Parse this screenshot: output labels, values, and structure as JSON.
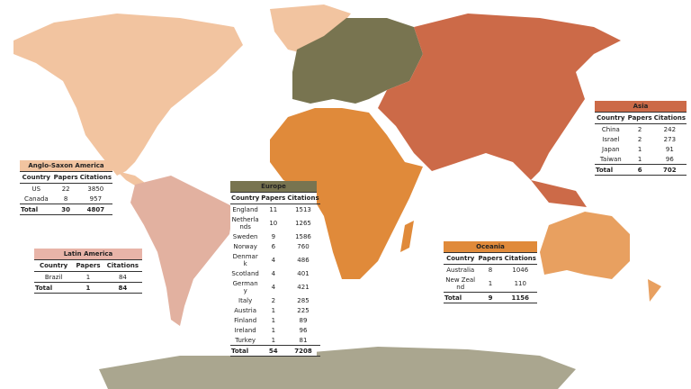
{
  "tables": [
    {
      "title": "Anglo-Saxon America",
      "columns": [
        "Country",
        "Papers",
        "Citations"
      ],
      "rows": [
        [
          "US",
          22,
          3850
        ],
        [
          "Canada",
          8,
          957
        ]
      ],
      "total": [
        "Total",
        30,
        4807
      ]
    },
    {
      "title": "Latin America",
      "columns": [
        "Country",
        "Papers",
        "Citations"
      ],
      "rows": [
        [
          "Brazil",
          1,
          84
        ]
      ],
      "total": [
        "Total",
        1,
        84
      ]
    },
    {
      "title": "Europe",
      "columns": [
        "Country",
        "Papers",
        "Citations"
      ],
      "rows": [
        [
          "England",
          11,
          1513
        ],
        [
          "Netherlands",
          10,
          1265
        ],
        [
          "Sweden",
          9,
          1586
        ],
        [
          "Norway",
          6,
          760
        ],
        [
          "Denmark",
          4,
          486
        ],
        [
          "Scotland",
          4,
          401
        ],
        [
          "Germany",
          4,
          421
        ],
        [
          "Italy",
          2,
          285
        ],
        [
          "Austria",
          1,
          225
        ],
        [
          "Finland",
          1,
          89
        ],
        [
          "Ireland",
          1,
          96
        ],
        [
          "Turkey",
          1,
          81
        ]
      ],
      "total": [
        "Total",
        54,
        7208
      ]
    },
    {
      "title": "Asia",
      "columns": [
        "Country",
        "Papers",
        "Citations"
      ],
      "rows": [
        [
          "China",
          2,
          242
        ],
        [
          "Israel",
          2,
          273
        ],
        [
          "Japan",
          1,
          91
        ],
        [
          "Taiwan",
          1,
          96
        ]
      ],
      "total": [
        "Total",
        6,
        702
      ]
    },
    {
      "title": "Oceania",
      "columns": [
        "Country",
        "Papers",
        "Citations"
      ],
      "rows": [
        [
          "Australia",
          8,
          1046
        ],
        [
          "New Zealnd",
          1,
          110
        ]
      ],
      "total": [
        "Total",
        9,
        1156
      ]
    }
  ]
}
